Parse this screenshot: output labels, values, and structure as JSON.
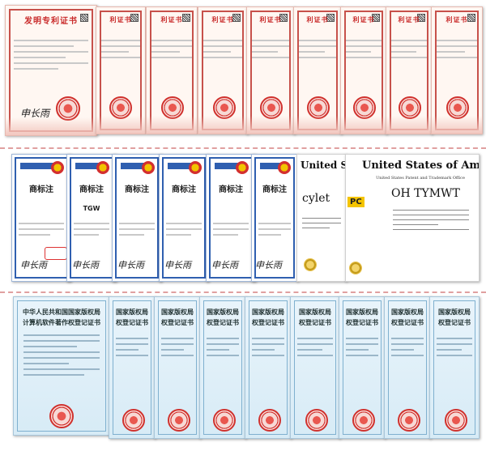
{
  "bands": {
    "patent": {
      "count": 10,
      "title": "发明专利证书",
      "short_title": "利证书",
      "signature": "申长雨"
    },
    "trademark": {
      "count": 6,
      "title": "商标注",
      "mark": "TGW",
      "signature": "申长雨"
    },
    "us": [
      {
        "header": "United States",
        "mark": "cylet",
        "badge": "PC"
      },
      {
        "header": "United States of America",
        "sub": "United States Patent and Trademark Office",
        "mark": "OH TYMWT"
      }
    ],
    "software": {
      "count": 10,
      "title_first": "中华人民共和国国家版权局\n计算机软件著作权登记证书",
      "title_rest": "国家版权局\n权登记证书"
    }
  },
  "colors": {
    "patent_red": "#c92a2a",
    "trademark_blue": "#2f5fb0",
    "software_blue": "#d7ebf6",
    "divider": "#e0a0a0"
  }
}
